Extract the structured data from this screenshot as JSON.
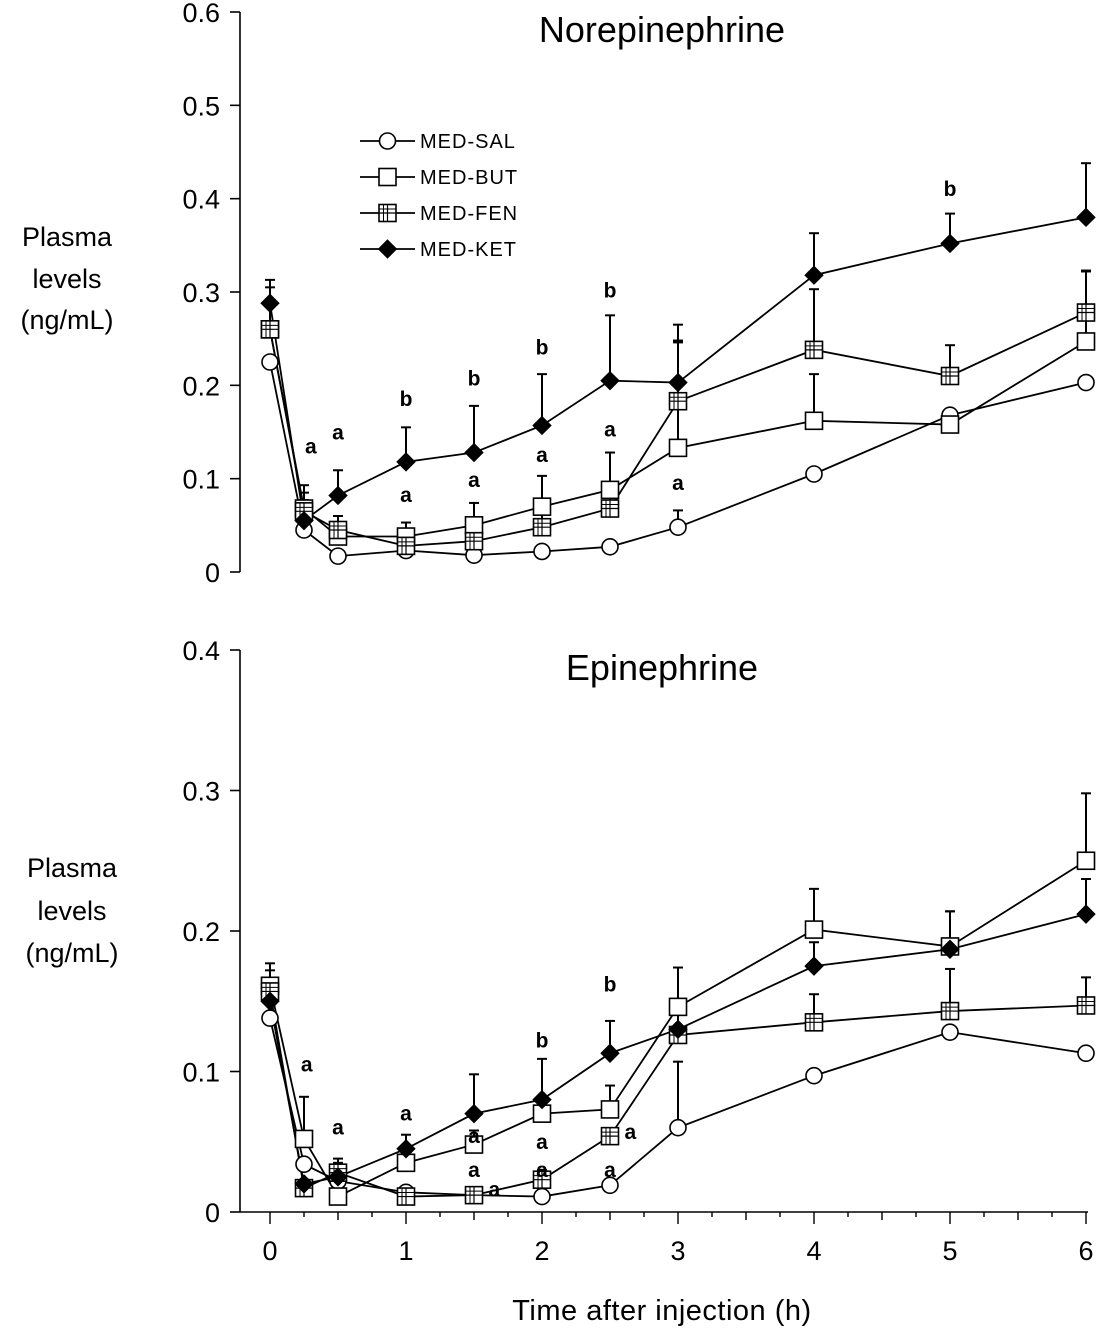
{
  "chart_data": [
    {
      "type": "line",
      "title": "Norepinephrine",
      "ylabel": [
        "Plasma",
        "levels",
        "(ng/mL)"
      ],
      "xlabel": "",
      "x": [
        0,
        0.25,
        0.5,
        1,
        1.5,
        2,
        2.5,
        3,
        4,
        5,
        6
      ],
      "xlim": [
        0,
        6
      ],
      "ylim": [
        0,
        0.6
      ],
      "yticks": [
        0,
        0.1,
        0.2,
        0.3,
        0.4,
        0.5,
        0.6
      ],
      "ytick_labels": [
        "0",
        "0.1",
        "0.2",
        "0.3",
        "0.4",
        "0.5",
        "0.6"
      ],
      "series": [
        {
          "name": "MED-SAL",
          "marker": "circle-open",
          "values": [
            0.225,
            0.045,
            0.017,
            0.023,
            0.018,
            0.022,
            0.027,
            0.048,
            0.105,
            0.168,
            0.203
          ],
          "errors": [
            0,
            0,
            0,
            0,
            0,
            0,
            0,
            0.018,
            0,
            0,
            0
          ]
        },
        {
          "name": "MED-BUT",
          "marker": "square-open",
          "values": [
            0.26,
            0.068,
            0.038,
            0.038,
            0.05,
            0.07,
            0.088,
            0.133,
            0.162,
            0.158,
            0.247
          ],
          "errors": [
            0.045,
            0.025,
            0.022,
            0.015,
            0.024,
            0.033,
            0.04,
            0.113,
            0.05,
            0,
            0.075
          ]
        },
        {
          "name": "MED-FEN",
          "marker": "square-cross",
          "values": [
            0.26,
            0.065,
            0.045,
            0.028,
            0.033,
            0.048,
            0.068,
            0.183,
            0.238,
            0.21,
            0.278
          ],
          "errors": [
            0,
            0.02,
            0.015,
            0.018,
            0.025,
            0.02,
            0.025,
            0.065,
            0.065,
            0.033,
            0.045
          ]
        },
        {
          "name": "MED-KET",
          "marker": "diamond-filled",
          "values": [
            0.288,
            0.055,
            0.082,
            0.118,
            0.128,
            0.157,
            0.205,
            0.203,
            0.318,
            0.352,
            0.38
          ],
          "errors": [
            0.025,
            0.022,
            0.027,
            0.037,
            0.05,
            0.055,
            0.07,
            0.062,
            0.045,
            0.032,
            0.058
          ]
        }
      ],
      "annotations": [
        {
          "text": "a",
          "x": 0.3,
          "y": 0.127
        },
        {
          "text": "a",
          "x": 0.5,
          "y": 0.142
        },
        {
          "text": "b",
          "x": 1,
          "y": 0.178
        },
        {
          "text": "a",
          "x": 1,
          "y": 0.075
        },
        {
          "text": "b",
          "x": 1.5,
          "y": 0.2
        },
        {
          "text": "a",
          "x": 1.5,
          "y": 0.091
        },
        {
          "text": "b",
          "x": 2,
          "y": 0.233
        },
        {
          "text": "a",
          "x": 2,
          "y": 0.118
        },
        {
          "text": "b",
          "x": 2.5,
          "y": 0.294
        },
        {
          "text": "a",
          "x": 2.5,
          "y": 0.145
        },
        {
          "text": "a",
          "x": 3,
          "y": 0.088
        },
        {
          "text": "b",
          "x": 5,
          "y": 0.403
        }
      ],
      "legend": {
        "position": "upper-left",
        "entries": [
          "MED-SAL",
          "MED-BUT",
          "MED-FEN",
          "MED-KET"
        ]
      }
    },
    {
      "type": "line",
      "title": "Epinephrine",
      "ylabel": [
        "Plasma",
        "levels",
        "(ng/mL)"
      ],
      "xlabel": "Time after injection (h)",
      "x": [
        0,
        0.25,
        0.5,
        1,
        1.5,
        2,
        2.5,
        3,
        4,
        5,
        6
      ],
      "xlim": [
        0,
        6
      ],
      "ylim": [
        0,
        0.4
      ],
      "yticks": [
        0,
        0.1,
        0.2,
        0.3,
        0.4
      ],
      "ytick_labels": [
        "0",
        "0.1",
        "0.2",
        "0.3",
        "0.4"
      ],
      "xticks": [
        0,
        1,
        2,
        3,
        4,
        5,
        6
      ],
      "xtick_labels": [
        "0",
        "1",
        "2",
        "3",
        "4",
        "5",
        "6"
      ],
      "series": [
        {
          "name": "MED-SAL",
          "marker": "circle-open",
          "values": [
            0.138,
            0.034,
            0.022,
            0.014,
            0.012,
            0.011,
            0.019,
            0.06,
            0.097,
            0.128,
            0.113
          ],
          "errors": [
            0,
            0,
            0,
            0,
            0,
            0,
            0,
            0.047,
            0,
            0,
            0
          ]
        },
        {
          "name": "MED-BUT",
          "marker": "square-open",
          "values": [
            0.161,
            0.052,
            0.011,
            0.035,
            0.048,
            0.07,
            0.073,
            0.146,
            0.201,
            0.189,
            0.25
          ],
          "errors": [
            0.016,
            0.03,
            0,
            0.01,
            0.01,
            0,
            0.017,
            0.028,
            0.029,
            0.025,
            0.048
          ]
        },
        {
          "name": "MED-FEN",
          "marker": "square-cross",
          "values": [
            0.157,
            0.017,
            0.028,
            0.011,
            0.012,
            0.023,
            0.054,
            0.126,
            0.135,
            0.143,
            0.147
          ],
          "errors": [
            0,
            0,
            0.01,
            0,
            0,
            0.007,
            0,
            0.022,
            0.02,
            0.03,
            0.02
          ]
        },
        {
          "name": "MED-KET",
          "marker": "diamond-filled",
          "values": [
            0.15,
            0.02,
            0.025,
            0.045,
            0.07,
            0.08,
            0.113,
            0.13,
            0.175,
            0.187,
            0.212
          ],
          "errors": [
            0.022,
            0,
            0.01,
            0.01,
            0.028,
            0.029,
            0.023,
            0.018,
            0.017,
            0.027,
            0.025
          ]
        }
      ],
      "annotations": [
        {
          "text": "a",
          "x": 0.27,
          "y": 0.1
        },
        {
          "text": "a",
          "x": 0.5,
          "y": 0.055
        },
        {
          "text": "a",
          "x": 1,
          "y": 0.065
        },
        {
          "text": "a",
          "x": 1.5,
          "y": 0.049
        },
        {
          "text": "a",
          "x": 1.65,
          "y": 0.011
        },
        {
          "text": "a",
          "x": 1.5,
          "y": 0.025
        },
        {
          "text": "b",
          "x": 2,
          "y": 0.117
        },
        {
          "text": "a",
          "x": 2,
          "y": 0.045
        },
        {
          "text": "a",
          "x": 2,
          "y": 0.025
        },
        {
          "text": "b",
          "x": 2.5,
          "y": 0.157
        },
        {
          "text": "a",
          "x": 2.65,
          "y": 0.052
        },
        {
          "text": "a",
          "x": 2.5,
          "y": 0.025
        }
      ]
    }
  ],
  "colors": {
    "line": "#000000",
    "background": "#ffffff"
  }
}
